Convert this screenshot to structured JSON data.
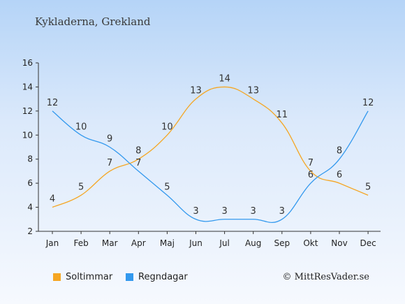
{
  "title": "Kykladerna, Grekland",
  "credit": "© MittResVader.se",
  "chart_data": {
    "type": "line",
    "categories": [
      "Jan",
      "Feb",
      "Mar",
      "Apr",
      "Maj",
      "Jun",
      "Jul",
      "Aug",
      "Sep",
      "Okt",
      "Nov",
      "Dec"
    ],
    "ylim": [
      2,
      16
    ],
    "yticks": [
      "2",
      "4",
      "6",
      "8",
      "10",
      "12",
      "14",
      "16"
    ],
    "grid": false,
    "legend_position": "bottom-left",
    "series": [
      {
        "name": "Soltimmar",
        "color": "#f5a623",
        "values": [
          4,
          5,
          7,
          8,
          10,
          13,
          14,
          13,
          11,
          7,
          6,
          5
        ],
        "labels": [
          "4",
          "5",
          "7",
          "8",
          "10",
          "13",
          "14",
          "13",
          "11",
          "7",
          "6",
          "5"
        ]
      },
      {
        "name": "Regndagar",
        "color": "#3399ee",
        "values": [
          12,
          10,
          9,
          7,
          5,
          3,
          3,
          3,
          3,
          6,
          8,
          12
        ],
        "labels": [
          "12",
          "10",
          "9",
          "7",
          "5",
          "3",
          "3",
          "3",
          "3",
          "6",
          "8",
          "12"
        ]
      }
    ]
  }
}
